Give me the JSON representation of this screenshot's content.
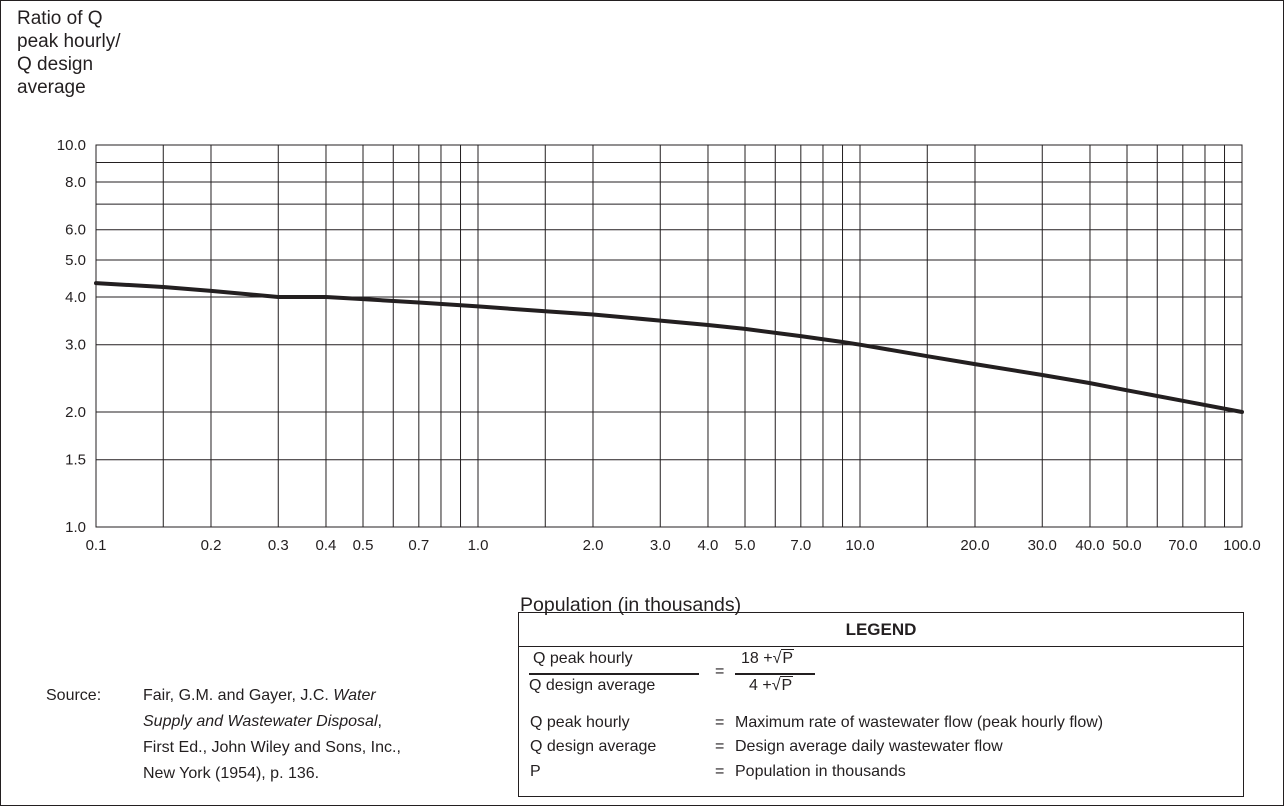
{
  "ylabel_lines": [
    "Ratio of Q",
    "peak hourly/",
    "Q design",
    "average"
  ],
  "chart_data": {
    "type": "line",
    "xscale": "log",
    "yscale": "log",
    "xlim": [
      0.1,
      100
    ],
    "ylim": [
      1.0,
      10.0
    ],
    "xlabel": "Population (in thousands)",
    "ylabel": "Ratio of Q peak hourly/ Q design average",
    "grid": true,
    "x_ticks": [
      {
        "value": 0.1,
        "label": "0.1"
      },
      {
        "value": 0.2,
        "label": "0.2"
      },
      {
        "value": 0.3,
        "label": "0.3"
      },
      {
        "value": 0.4,
        "label": "0.4"
      },
      {
        "value": 0.5,
        "label": "0.5"
      },
      {
        "value": 0.7,
        "label": "0.7"
      },
      {
        "value": 1,
        "label": "1.0"
      },
      {
        "value": 2,
        "label": "2.0"
      },
      {
        "value": 3,
        "label": "3.0"
      },
      {
        "value": 4,
        "label": "4.0"
      },
      {
        "value": 5,
        "label": "5.0"
      },
      {
        "value": 7,
        "label": "7.0"
      },
      {
        "value": 10,
        "label": "10.0"
      },
      {
        "value": 20,
        "label": "20.0"
      },
      {
        "value": 30,
        "label": "30.0"
      },
      {
        "value": 40,
        "label": "40.0"
      },
      {
        "value": 50,
        "label": "50.0"
      },
      {
        "value": 70,
        "label": "70.0"
      },
      {
        "value": 100,
        "label": "100.0"
      }
    ],
    "y_ticks": [
      {
        "value": 1,
        "label": "1.0"
      },
      {
        "value": 1.5,
        "label": "1.5"
      },
      {
        "value": 2,
        "label": "2.0"
      },
      {
        "value": 3,
        "label": "3.0"
      },
      {
        "value": 4,
        "label": "4.0"
      },
      {
        "value": 5,
        "label": "5.0"
      },
      {
        "value": 6,
        "label": "6.0"
      },
      {
        "value": 8,
        "label": "8.0"
      },
      {
        "value": 10,
        "label": "10.0"
      }
    ],
    "x_grid": [
      0.1,
      0.15,
      0.2,
      0.3,
      0.4,
      0.5,
      0.6,
      0.7,
      0.8,
      0.9,
      1,
      1.5,
      2,
      3,
      4,
      5,
      6,
      7,
      8,
      9,
      10,
      15,
      20,
      30,
      40,
      50,
      60,
      70,
      80,
      90,
      100
    ],
    "y_grid": [
      1,
      1.5,
      2,
      3,
      4,
      5,
      6,
      7,
      8,
      9,
      10
    ],
    "series": [
      {
        "x": [
          0.1,
          0.15,
          0.2,
          0.3,
          0.4,
          0.5,
          0.7,
          1,
          1.5,
          2,
          3,
          4,
          5,
          7,
          9,
          10,
          15,
          20,
          30,
          40,
          50,
          70,
          100
        ],
        "y": [
          4.35,
          4.25,
          4.15,
          4.0,
          4.0,
          3.95,
          3.87,
          3.78,
          3.67,
          3.6,
          3.47,
          3.38,
          3.3,
          3.16,
          3.05,
          3.0,
          2.8,
          2.67,
          2.5,
          2.38,
          2.28,
          2.14,
          2.0
        ]
      }
    ]
  },
  "legend": {
    "title": "LEGEND",
    "formula": {
      "lhs_numerator": "Q peak hourly",
      "lhs_denominator": "Q design average",
      "equals": "=",
      "rhs_numerator_prefix": "18 +",
      "rhs_denominator_prefix": "4 +",
      "sqrt_symbol": "√",
      "sqrt_var": "P"
    },
    "definitions": [
      {
        "term": "Q peak hourly",
        "eq": "=",
        "desc": "Maximum rate of wastewater flow (peak hourly flow)"
      },
      {
        "term": "Q design average",
        "eq": "=",
        "desc": "Design average daily wastewater flow"
      },
      {
        "term": "P",
        "eq": "=",
        "desc": "Population in thousands"
      }
    ]
  },
  "source": {
    "key": "Source:",
    "line1_plain": "Fair, G.M. and Gayer, J.C. ",
    "line1_italic": "Water",
    "line2_italic": "Supply and Wastewater Disposal",
    "line2_plain": ",",
    "line3": "First Ed., John Wiley and Sons, Inc.,",
    "line4": "New York (1954), p. 136."
  }
}
